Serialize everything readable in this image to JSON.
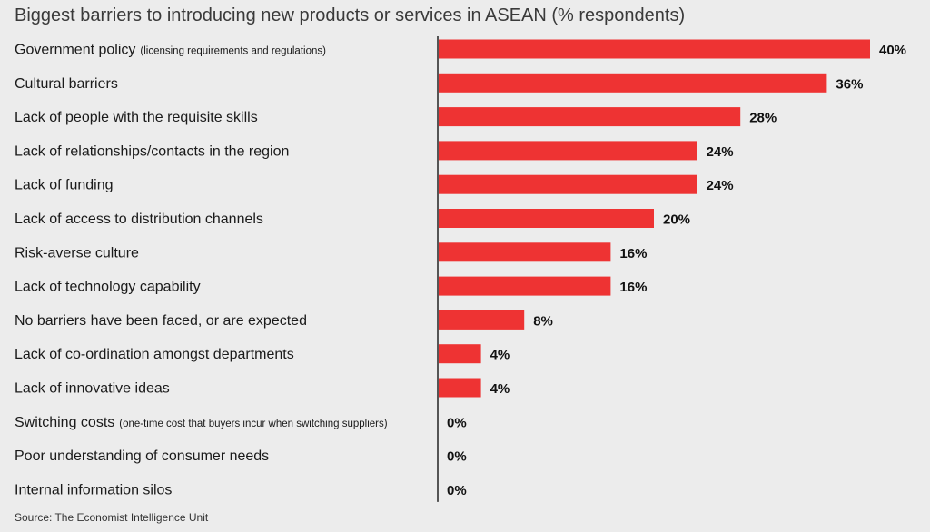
{
  "title": "Biggest barriers to introducing new products or services in ASEAN (% respondents)",
  "source": "Source: The Economist Intelligence Unit",
  "colors": {
    "bar": "#ee3333",
    "axis": "#555555",
    "background": "#ececec"
  },
  "chart_data": {
    "type": "bar",
    "orientation": "horizontal",
    "title": "Biggest barriers to introducing new products or services in ASEAN (% respondents)",
    "xlabel": "",
    "ylabel": "",
    "xlim": [
      0,
      40
    ],
    "grid": false,
    "legend": "none",
    "categories": [
      {
        "label": "Government policy",
        "note": "(licensing requirements and regulations)"
      },
      {
        "label": "Cultural barriers",
        "note": ""
      },
      {
        "label": "Lack of people with the requisite skills",
        "note": ""
      },
      {
        "label": "Lack of relationships/contacts in the region",
        "note": ""
      },
      {
        "label": "Lack of funding",
        "note": ""
      },
      {
        "label": "Lack of access to distribution channels",
        "note": ""
      },
      {
        "label": "Risk-averse culture",
        "note": ""
      },
      {
        "label": "Lack of technology capability",
        "note": ""
      },
      {
        "label": "No barriers have been faced, or are expected",
        "note": ""
      },
      {
        "label": "Lack of co-ordination amongst departments",
        "note": ""
      },
      {
        "label": "Lack of innovative ideas",
        "note": ""
      },
      {
        "label": "Switching costs",
        "note": "(one-time cost that buyers incur when switching suppliers)"
      },
      {
        "label": "Poor understanding of consumer needs",
        "note": ""
      },
      {
        "label": "Internal information silos",
        "note": ""
      }
    ],
    "values": [
      40,
      36,
      28,
      24,
      24,
      20,
      16,
      16,
      8,
      4,
      4,
      0,
      0,
      0
    ],
    "value_labels": [
      "40%",
      "36%",
      "28%",
      "24%",
      "24%",
      "20%",
      "16%",
      "16%",
      "8%",
      "4%",
      "4%",
      "0%",
      "0%",
      "0%"
    ]
  }
}
